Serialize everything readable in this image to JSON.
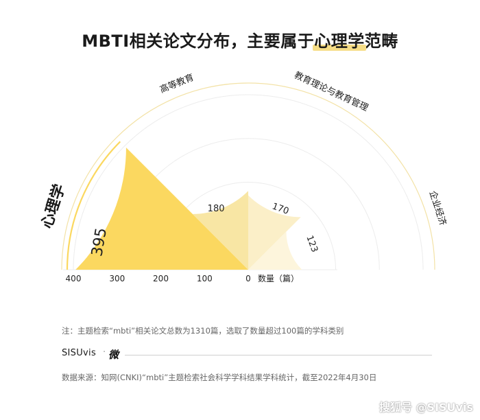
{
  "title": {
    "prefix": "MBTI相关论文分布，主要属于",
    "highlight": "心理学",
    "suffix": "范畴"
  },
  "chart_data": {
    "type": "polar-bar",
    "unit_label": "数量（篇）",
    "axis_ticks": [
      0,
      100,
      200,
      300,
      400
    ],
    "axis_tick_labels": [
      "0",
      "100",
      "200",
      "300",
      "400"
    ],
    "categories": [
      "心理学",
      "高等教育",
      "教育理论与教育管理",
      "企业经济"
    ],
    "values": [
      395,
      180,
      170,
      123
    ],
    "value_labels": [
      "395",
      "180",
      "170",
      "123"
    ],
    "colors": [
      "#fbd860",
      "#f8e6a4",
      "#fbefc8",
      "#fdf5dc"
    ]
  },
  "note": "注：主题检索“mbti”相关论文总数为1310篇，选取了数量超过100篇的学科类别",
  "brand": {
    "name": "SISUvis",
    "dot": "·",
    "mark": "微"
  },
  "source": "数据来源：知网(CNKI)“mbti”主题检索社会科学学科结果学科统计，截至2022年4月30日",
  "watermark": "搜狐号 @SISUvis"
}
